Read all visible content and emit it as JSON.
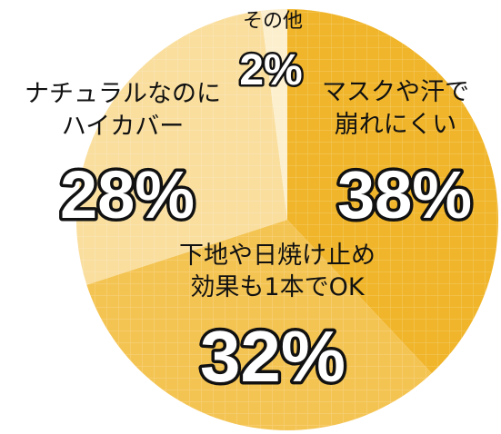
{
  "chart_data": {
    "type": "pie",
    "title": "",
    "start_angle_deg": 0,
    "direction": "clockwise",
    "grid": true,
    "slices": [
      {
        "label_lines": [
          "マスクや汗で",
          "崩れにくい"
        ],
        "value": 38,
        "percent_text": "38%",
        "color": "#F0B52A"
      },
      {
        "label_lines": [
          "下地や日焼け止め",
          "効果も1本でOK"
        ],
        "value": 32,
        "percent_text": "32%",
        "color": "#F4C453"
      },
      {
        "label_lines": [
          "ナチュラルなのに",
          "ハイカバー"
        ],
        "value": 28,
        "percent_text": "28%",
        "color": "#F9DE9E"
      },
      {
        "label_lines": [
          "その他"
        ],
        "value": 2,
        "percent_text": "2%",
        "color": "#FCEFCD"
      }
    ]
  }
}
